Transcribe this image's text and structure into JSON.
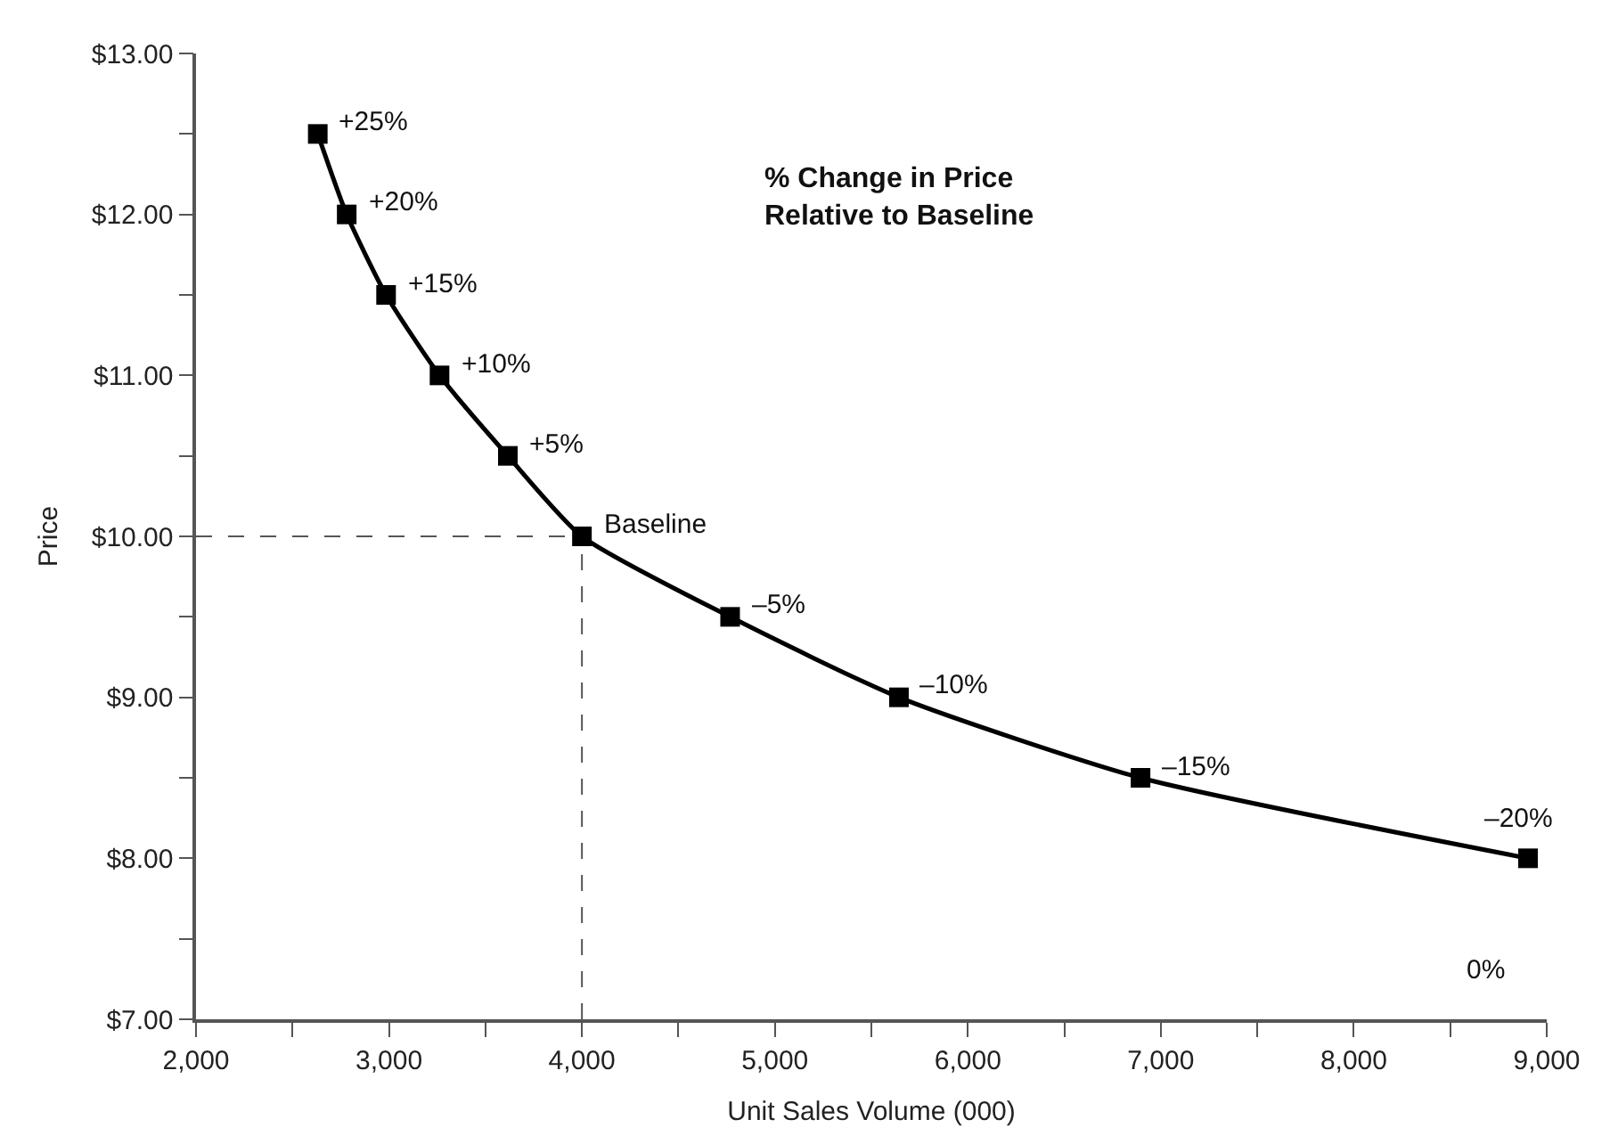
{
  "chart_data": {
    "type": "line",
    "xlabel": "Unit Sales Volume (000)",
    "ylabel": "Price",
    "x": [
      2631,
      2781,
      2985,
      3262,
      3616,
      4000,
      4768,
      5643,
      6895,
      8903
    ],
    "series": [
      {
        "color": "#000000",
        "values": [
          12.5,
          12.0,
          11.5,
          11.0,
          10.5,
          10.0,
          9.5,
          9.0,
          8.5,
          8.0
        ]
      }
    ],
    "marker": "square",
    "line_style": "solid",
    "grid": false,
    "xlim": [
      2000,
      9000
    ],
    "xticks": [
      {
        "value": 2000,
        "label": "2,000"
      },
      {
        "value": 2500,
        "label": null
      },
      {
        "value": 3000,
        "label": "3,000"
      },
      {
        "value": 3500,
        "label": null
      },
      {
        "value": 4000,
        "label": "4,000"
      },
      {
        "value": 4500,
        "label": null
      },
      {
        "value": 5000,
        "label": "5,000"
      },
      {
        "value": 5500,
        "label": null
      },
      {
        "value": 6000,
        "label": "6,000"
      },
      {
        "value": 6500,
        "label": null
      },
      {
        "value": 7000,
        "label": "7,000"
      },
      {
        "value": 7500,
        "label": null
      },
      {
        "value": 8000,
        "label": "8,000"
      },
      {
        "value": 8500,
        "label": null
      },
      {
        "value": 9000,
        "label": "9,000"
      }
    ],
    "ylim": [
      7,
      13
    ],
    "yticks": [
      {
        "value": 7,
        "label": "$7.00"
      },
      {
        "value": 7.5,
        "label": null
      },
      {
        "value": 8,
        "label": "$8.00"
      },
      {
        "value": 8.5,
        "label": null
      },
      {
        "value": 9,
        "label": "$9.00"
      },
      {
        "value": 9.5,
        "label": null
      },
      {
        "value": 10,
        "label": "$10.00"
      },
      {
        "value": 10.5,
        "label": null
      },
      {
        "value": 11,
        "label": "$11.00"
      },
      {
        "value": 11.5,
        "label": null
      },
      {
        "value": 12,
        "label": "$12.00"
      },
      {
        "value": 12.5,
        "label": null
      },
      {
        "value": 13,
        "label": "$13.00"
      }
    ],
    "ref_lines": [
      {
        "axis": "y",
        "value": 10,
        "line_style": "dashed"
      },
      {
        "axis": "x",
        "value": 4000,
        "line_style": "dashed"
      }
    ],
    "annotations": [
      {
        "text": "+25%",
        "x": 2631,
        "y": 12.5
      },
      {
        "text": "+20%",
        "x": 2781,
        "y": 12.0
      },
      {
        "text": "+15%",
        "x": 2985,
        "y": 11.5
      },
      {
        "text": "+10%",
        "x": 3262,
        "y": 11.0
      },
      {
        "text": "+5%",
        "x": 3616,
        "y": 10.5
      },
      {
        "text": "Baseline",
        "x": 4000,
        "y": 10.0
      },
      {
        "text": "–5%",
        "x": 4768,
        "y": 9.5
      },
      {
        "text": "–10%",
        "x": 5643,
        "y": 9.0
      },
      {
        "text": "–15%",
        "x": 6895,
        "y": 8.5
      },
      {
        "text": "–20%",
        "x": 8903,
        "y": 8.0
      },
      "0%",
      "% Change in Price\nRelative to Baseline"
    ]
  }
}
